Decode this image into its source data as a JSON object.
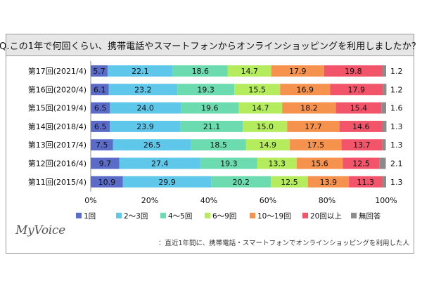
{
  "chart_data": {
    "type": "bar",
    "orientation": "horizontal",
    "stacked": true,
    "percent": true,
    "title": "Q.この1年で何回くらい、携帯電話やスマートフォンからオンラインショッピングを利用しましたか？",
    "categories": [
      "第17回(2021/4)",
      "第16回(2020/4)",
      "第15回(2019/4)",
      "第14回(2018/4)",
      "第13回(2017/4)",
      "第12回(2016/4)",
      "第11回(2015/4)"
    ],
    "series": [
      {
        "name": "1回",
        "color": "#5b6bc8",
        "values": [
          5.7,
          6.1,
          6.5,
          6.5,
          7.5,
          9.7,
          10.9
        ]
      },
      {
        "name": "2～3回",
        "color": "#5fc7ea",
        "values": [
          22.1,
          23.2,
          24.0,
          23.9,
          26.5,
          27.4,
          29.9
        ]
      },
      {
        "name": "4～5回",
        "color": "#6cdcb0",
        "values": [
          18.6,
          19.3,
          19.6,
          21.1,
          18.5,
          19.3,
          20.2
        ]
      },
      {
        "name": "6～9回",
        "color": "#b5ec5e",
        "values": [
          14.7,
          15.5,
          14.7,
          15.0,
          14.9,
          13.3,
          12.5
        ]
      },
      {
        "name": "10～19回",
        "color": "#f5924d",
        "values": [
          17.9,
          16.9,
          18.2,
          17.7,
          17.5,
          15.6,
          13.9
        ]
      },
      {
        "name": "20回以上",
        "color": "#f2546a",
        "values": [
          19.8,
          17.9,
          15.4,
          14.6,
          13.7,
          12.5,
          11.3
        ]
      },
      {
        "name": "無回答",
        "color": "#8c8c8c",
        "values": [
          1.2,
          1.2,
          1.6,
          1.3,
          1.3,
          2.1,
          1.3
        ]
      }
    ],
    "xlim": [
      0,
      100
    ],
    "xticks": [
      "0%",
      "20%",
      "40%",
      "60%",
      "80%",
      "100%"
    ],
    "legend_position": "bottom",
    "grid": false
  },
  "branding": {
    "logo": "MyVoice"
  },
  "footnote": "：直近1年間に、携帯電話・スマートフォンでオンラインショッピングを利用した人"
}
